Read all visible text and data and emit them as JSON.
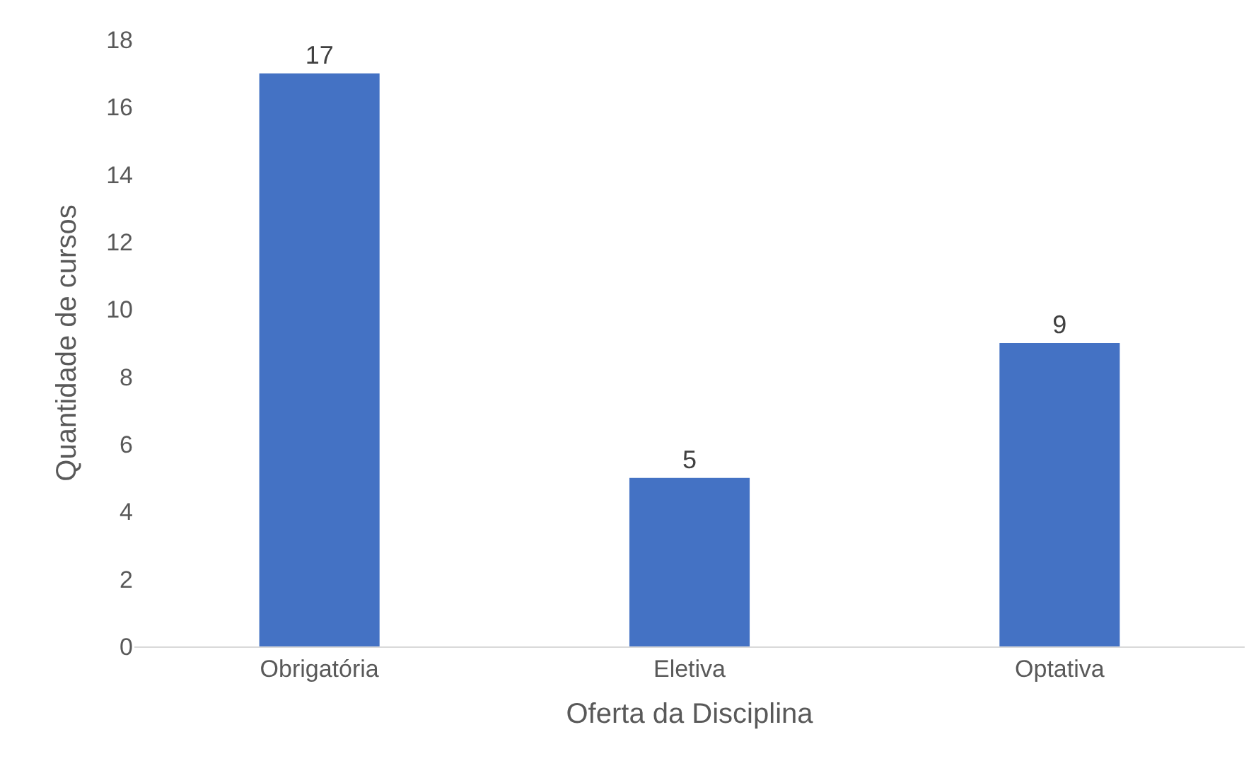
{
  "chart_data": {
    "type": "bar",
    "xlabel": "Oferta da Disciplina",
    "ylabel": "Quantidade de cursos",
    "categories": [
      "Obrigatória",
      "Eletiva",
      "Optativa"
    ],
    "values": [
      17,
      5,
      9
    ],
    "color": "#4472c4",
    "ylim": [
      0,
      18
    ],
    "yticks": [
      0,
      2,
      4,
      6,
      8,
      10,
      12,
      14,
      16,
      18
    ],
    "grid": false,
    "data_labels": true,
    "legend": false
  }
}
